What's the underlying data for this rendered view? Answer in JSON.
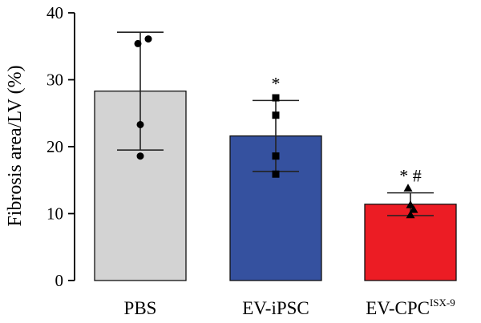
{
  "chart_data": {
    "type": "bar",
    "ylabel": "Fibrosis area/LV (%)",
    "ylim": [
      0,
      40
    ],
    "yticks": [
      0,
      10,
      20,
      30,
      40
    ],
    "grid": false,
    "categories": [
      {
        "name": "PBS",
        "label": "PBS",
        "superscript": "",
        "mean": 28.3,
        "sd_upper": 37.1,
        "sd_lower": 19.5,
        "points": [
          36.1,
          35.4,
          23.3,
          18.6
        ],
        "marker": "circle",
        "color": "#d3d3d3",
        "annotation": ""
      },
      {
        "name": "EV-iPSC",
        "label": "EV-iPSC",
        "superscript": "",
        "mean": 21.6,
        "sd_upper": 26.9,
        "sd_lower": 16.3,
        "points": [
          27.3,
          24.7,
          18.6,
          15.9
        ],
        "marker": "square",
        "color": "#35519f",
        "annotation": "*"
      },
      {
        "name": "EV-CPCISX-9",
        "label": "EV-CPC",
        "superscript": "ISX-9",
        "mean": 11.4,
        "sd_upper": 13.1,
        "sd_lower": 9.7,
        "points": [
          13.8,
          11.3,
          10.6,
          9.8
        ],
        "marker": "triangle",
        "color": "#ec1c24",
        "annotation": "* #"
      }
    ]
  }
}
